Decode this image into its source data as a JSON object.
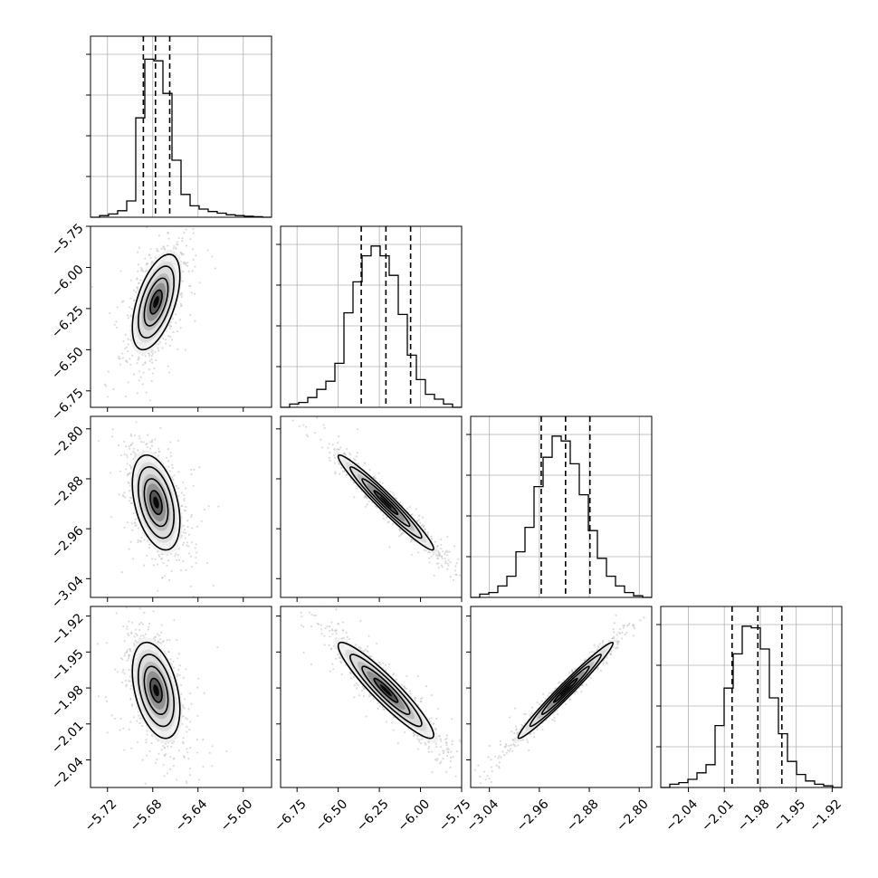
{
  "chart_data": {
    "type": "scatter",
    "kind": "corner",
    "title": "",
    "n_params": 4,
    "grid": true,
    "params": [
      {
        "index": 0,
        "range": [
          -5.735,
          -5.575
        ],
        "ticks": [
          -5.72,
          -5.68,
          -5.64,
          -5.6
        ],
        "tick_labels": [
          "−5.72",
          "−5.68",
          "−5.64",
          "−5.60"
        ],
        "quantiles": [
          -5.6883,
          -5.6776,
          -5.665
        ],
        "mean": -5.677,
        "sd": 0.0105,
        "histogram": [
          0.0,
          0.01,
          0.02,
          0.04,
          0.1,
          0.61,
          0.97,
          0.96,
          0.76,
          0.35,
          0.14,
          0.07,
          0.05,
          0.035,
          0.025,
          0.015,
          0.01,
          0.006,
          0.003,
          0.0
        ]
      },
      {
        "index": 1,
        "range": [
          -6.85,
          -5.75
        ],
        "ticks": [
          -6.75,
          -6.5,
          -6.25,
          -6.0,
          -5.75
        ],
        "tick_labels": [
          "−6.75",
          "−6.50",
          "−6.25",
          "−6.00",
          "−5.75"
        ],
        "quantiles": [
          -6.36,
          -6.21,
          -6.06
        ],
        "mean": -6.21,
        "sd": 0.145,
        "histogram": [
          0.0,
          0.02,
          0.03,
          0.06,
          0.11,
          0.16,
          0.27,
          0.58,
          0.77,
          0.93,
          0.99,
          0.93,
          0.81,
          0.57,
          0.32,
          0.17,
          0.08,
          0.05,
          0.02,
          0.0
        ]
      },
      {
        "index": 2,
        "range": [
          -3.07,
          -2.78
        ],
        "ticks": [
          -3.04,
          -2.96,
          -2.88,
          -2.8
        ],
        "tick_labels": [
          "−3.04",
          "−2.96",
          "−2.88",
          "−2.80"
        ],
        "quantiles": [
          -2.957,
          -2.918,
          -2.879
        ],
        "mean": -2.918,
        "sd": 0.038,
        "histogram": [
          0.0,
          0.02,
          0.03,
          0.07,
          0.13,
          0.28,
          0.43,
          0.68,
          0.86,
          0.99,
          0.96,
          0.82,
          0.63,
          0.41,
          0.24,
          0.13,
          0.07,
          0.03,
          0.01,
          0.0
        ]
      },
      {
        "index": 3,
        "range": [
          -2.063,
          -1.912
        ],
        "ticks": [
          -2.04,
          -2.01,
          -1.98,
          -1.95,
          -1.92
        ],
        "tick_labels": [
          "−2.04",
          "−2.01",
          "−1.98",
          "−1.95",
          "−1.92"
        ],
        "quantiles": [
          -2.0035,
          -1.982,
          -1.962
        ],
        "mean": -1.982,
        "sd": 0.02,
        "histogram": [
          0.0,
          0.02,
          0.03,
          0.05,
          0.09,
          0.14,
          0.38,
          0.61,
          0.82,
          0.99,
          0.98,
          0.85,
          0.55,
          0.33,
          0.16,
          0.08,
          0.04,
          0.02,
          0.01,
          0.0
        ]
      }
    ],
    "correlations": [
      {
        "pair": [
          1,
          0
        ],
        "rho": 0.55
      },
      {
        "pair": [
          2,
          0
        ],
        "rho": -0.4
      },
      {
        "pair": [
          2,
          1
        ],
        "rho": -0.97
      },
      {
        "pair": [
          3,
          0
        ],
        "rho": -0.4
      },
      {
        "pair": [
          3,
          1
        ],
        "rho": -0.93
      },
      {
        "pair": [
          3,
          2
        ],
        "rho": 0.98
      }
    ],
    "contour_levels_sigma": [
      0.5,
      1.0,
      1.5,
      2.0
    ],
    "colors": {
      "line": "#000000",
      "grid": "#b0b0b0",
      "density_dark": "#000000",
      "density_light": "#f0f0f0",
      "points": "#bdbdbd"
    }
  }
}
